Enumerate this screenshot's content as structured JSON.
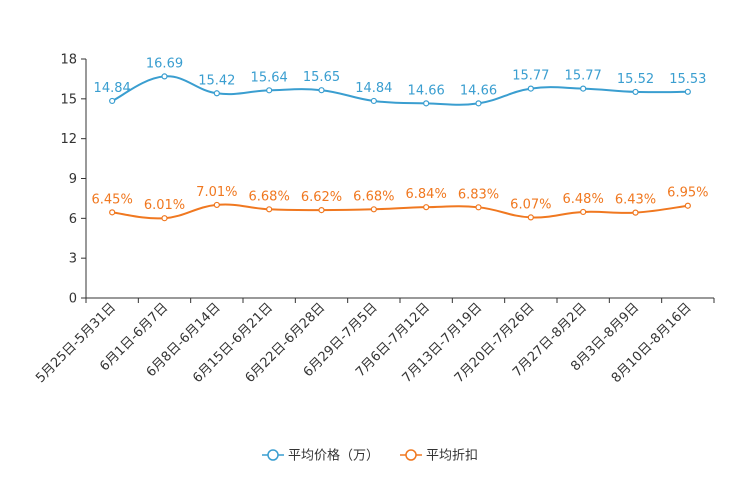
{
  "chart_data": {
    "type": "line",
    "categories": [
      "5月25日-5月31日",
      "6月1日-6月7日",
      "6月8日-6月14日",
      "6月15日-6月21日",
      "6月22日-6月28日",
      "6月29日-7月5日",
      "7月6日-7月12日",
      "7月13日-7月19日",
      "7月20日-7月26日",
      "7月27日-8月2日",
      "8月3日-8月9日",
      "8月10日-8月16日"
    ],
    "y_ticks": [
      "0",
      "3",
      "6",
      "9",
      "12",
      "15",
      "18"
    ],
    "ylim": [
      0,
      18
    ],
    "series": [
      {
        "name": "平均价格（万）",
        "color": "#3a9ed0",
        "values": [
          14.84,
          16.69,
          15.42,
          15.64,
          15.65,
          14.84,
          14.66,
          14.66,
          15.77,
          15.77,
          15.52,
          15.53
        ],
        "labels": [
          "14.84",
          "16.69",
          "15.42",
          "15.64",
          "15.65",
          "14.84",
          "14.66",
          "14.66",
          "15.77",
          "15.77",
          "15.52",
          "15.53"
        ]
      },
      {
        "name": "平均折扣",
        "color": "#f07820",
        "values": [
          6.45,
          6.01,
          7.01,
          6.68,
          6.62,
          6.68,
          6.84,
          6.83,
          6.07,
          6.48,
          6.43,
          6.95
        ],
        "labels": [
          "6.45%",
          "6.01%",
          "7.01%",
          "6.68%",
          "6.62%",
          "6.68%",
          "6.84%",
          "6.83%",
          "6.07%",
          "6.48%",
          "6.43%",
          "6.95%"
        ]
      }
    ],
    "legend_position": "bottom-center",
    "grid": false
  }
}
